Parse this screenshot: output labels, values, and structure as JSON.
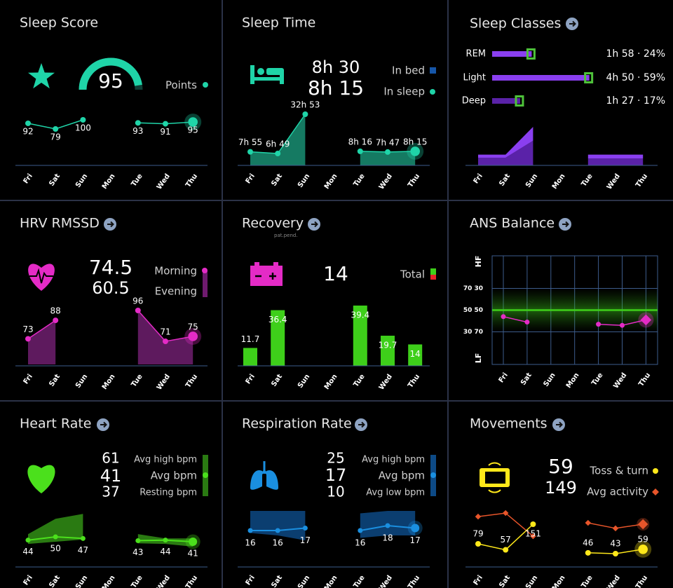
{
  "days": [
    "Fri",
    "Sat",
    "Sun",
    "Mon",
    "Tue",
    "Wed",
    "Thu"
  ],
  "sleep_score": {
    "title": "Sleep Score",
    "score": 95,
    "gauge_range": [
      0,
      100
    ],
    "legend": "Points",
    "values": [
      92,
      79,
      100,
      null,
      93,
      91,
      95
    ]
  },
  "sleep_time": {
    "title": "Sleep Time",
    "in_bed": "8h 30",
    "in_sleep": "8h 15",
    "legend": [
      "In bed",
      "In sleep"
    ],
    "values": [
      7.92,
      6.82,
      32.88,
      null,
      8.27,
      7.78,
      8.25
    ],
    "value_labels": [
      "7h 55",
      "6h 49",
      "32h 53",
      null,
      "8h 16",
      "7h 47",
      "8h 15"
    ]
  },
  "sleep_classes": {
    "title": "Sleep Classes",
    "rows": [
      {
        "name": "REM",
        "percent": 24,
        "label": "1h 58 · 24%"
      },
      {
        "name": "Light",
        "percent": 59,
        "label": "4h 50 · 59%"
      },
      {
        "name": "Deep",
        "percent": 17,
        "label": "1h 27 · 17%"
      }
    ],
    "series": [
      {
        "values": [
          10,
          10,
          32,
          null,
          9,
          9,
          9
        ]
      },
      {
        "values": [
          4,
          4,
          18,
          null,
          5,
          5,
          5
        ]
      }
    ]
  },
  "hrv": {
    "title": "HRV RMSSD",
    "morning": 74.5,
    "evening": 60.5,
    "legend": [
      "Morning",
      "Evening"
    ],
    "values": [
      73,
      88,
      null,
      null,
      96,
      71,
      75
    ]
  },
  "recovery": {
    "title": "Recovery",
    "note": "pat.pend.",
    "total": 14,
    "legend": "Total",
    "values": [
      11.7,
      36.4,
      null,
      null,
      39.4,
      19.7,
      14
    ]
  },
  "ans_balance": {
    "title": "ANS Balance",
    "top_label": "HF",
    "bottom_label": "LF",
    "ylim": [
      0,
      100
    ],
    "yticks": [
      {
        "value": 70,
        "label": "70 30"
      },
      {
        "value": 50,
        "label": "50 50"
      },
      {
        "value": 30,
        "label": "30 70"
      }
    ],
    "values": [
      44,
      39,
      null,
      null,
      37,
      36,
      41
    ]
  },
  "heart_rate": {
    "title": "Heart Rate",
    "avg_high": 61,
    "avg": 41,
    "resting": 37,
    "legend": [
      "Avg high bpm",
      "Avg bpm",
      "Resting bpm"
    ],
    "values": [
      44,
      50,
      47,
      null,
      43,
      44,
      41
    ],
    "band_high": [
      55,
      83,
      92,
      null,
      55,
      47,
      47
    ],
    "band_low": [
      37,
      41,
      45,
      null,
      38,
      37,
      32
    ]
  },
  "respiration": {
    "title": "Respiration Rate",
    "avg_high": 25,
    "avg": 17,
    "avg_low": 10,
    "legend": [
      "Avg high bpm",
      "Avg bpm",
      "Avg low bpm"
    ],
    "values": [
      16,
      16,
      17,
      null,
      16,
      18,
      17
    ],
    "band_high": [
      24,
      24,
      24,
      null,
      23,
      24,
      24
    ],
    "band_low": [
      15,
      14,
      12,
      null,
      13,
      14,
      14
    ]
  },
  "movements": {
    "title": "Movements",
    "toss_turn": 59,
    "avg_activity": 149,
    "legend": [
      "Toss & turn",
      "Avg activity"
    ],
    "values": [
      79,
      57,
      151,
      null,
      46,
      43,
      59
    ],
    "activity": [
      179,
      192,
      107,
      null,
      156,
      136,
      151
    ]
  }
}
